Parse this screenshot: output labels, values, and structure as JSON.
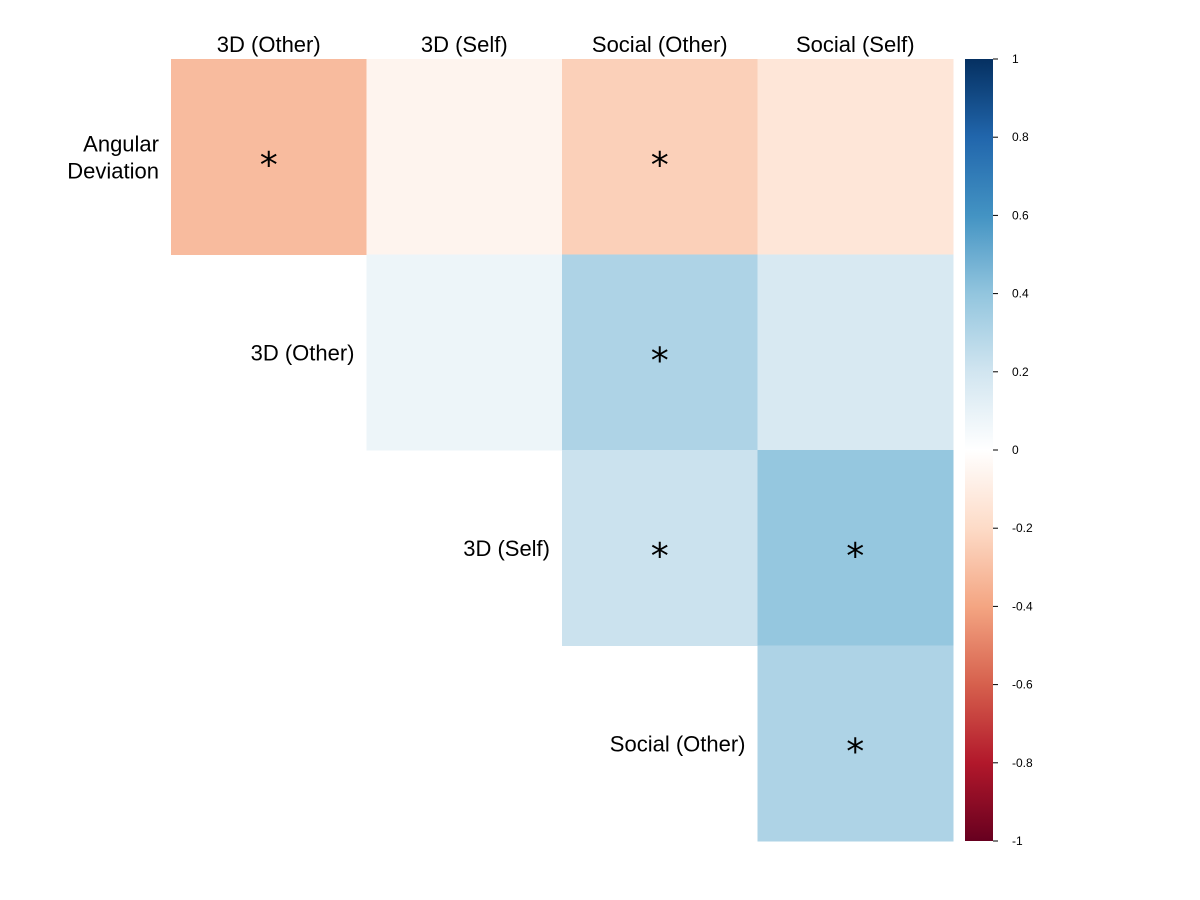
{
  "chart_data": {
    "type": "heatmap",
    "title": "",
    "columns": [
      "3D (Other)",
      "3D (Self)",
      "Social (Other)",
      "Social (Self)"
    ],
    "rows": [
      "Angular\nDeviation",
      "3D (Other)",
      "3D (Self)",
      "Social (Other)"
    ],
    "cells": [
      {
        "row": 0,
        "col": 0,
        "value": -0.32,
        "significant": true
      },
      {
        "row": 0,
        "col": 1,
        "value": -0.06,
        "significant": false
      },
      {
        "row": 0,
        "col": 2,
        "value": -0.24,
        "significant": true
      },
      {
        "row": 0,
        "col": 3,
        "value": -0.14,
        "significant": false
      },
      {
        "row": 1,
        "col": 1,
        "value": 0.08,
        "significant": false
      },
      {
        "row": 1,
        "col": 2,
        "value": 0.31,
        "significant": true
      },
      {
        "row": 1,
        "col": 3,
        "value": 0.17,
        "significant": false
      },
      {
        "row": 2,
        "col": 2,
        "value": 0.22,
        "significant": true
      },
      {
        "row": 2,
        "col": 3,
        "value": 0.39,
        "significant": true
      },
      {
        "row": 3,
        "col": 3,
        "value": 0.31,
        "significant": true
      }
    ],
    "significance_marker": "*",
    "colorbar": {
      "range": [
        -1,
        1
      ],
      "ticks": [
        "1",
        "0.8",
        "0.6",
        "0.4",
        "0.2",
        "0",
        "-0.2",
        "-0.4",
        "-0.6",
        "-0.8",
        "-1"
      ],
      "colors": [
        "#67001F",
        "#B2182B",
        "#D6604D",
        "#F4A582",
        "#FDDBC7",
        "#FFFFFF",
        "#D1E5F0",
        "#92C5DE",
        "#4393C3",
        "#2166AC",
        "#053061"
      ]
    }
  }
}
